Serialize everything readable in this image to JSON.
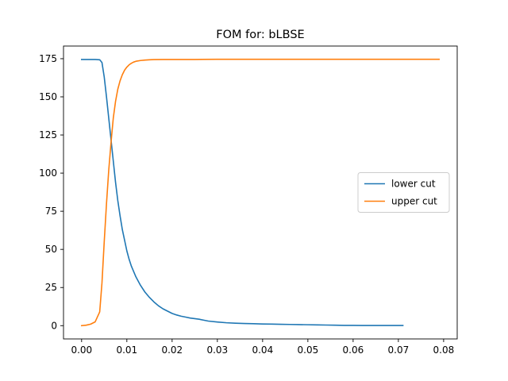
{
  "chart_data": {
    "type": "line",
    "title": "FOM for: bLBSE",
    "xlabel": "",
    "ylabel": "",
    "xlim": [
      -0.004,
      0.083
    ],
    "ylim": [
      -8.7,
      183.3
    ],
    "xticks": [
      0.0,
      0.01,
      0.02,
      0.03,
      0.04,
      0.05,
      0.06,
      0.07,
      0.08
    ],
    "xtick_labels": [
      "0.00",
      "0.01",
      "0.02",
      "0.03",
      "0.04",
      "0.05",
      "0.06",
      "0.07",
      "0.08"
    ],
    "yticks": [
      0,
      25,
      50,
      75,
      100,
      125,
      150,
      175
    ],
    "ytick_labels": [
      "0",
      "25",
      "50",
      "75",
      "100",
      "125",
      "150",
      "175"
    ],
    "grid": false,
    "legend_position": "center-right",
    "series": [
      {
        "name": "lower cut",
        "color": "#1f77b4",
        "x": [
          0.0,
          0.001,
          0.002,
          0.003,
          0.004,
          0.0045,
          0.005,
          0.0055,
          0.006,
          0.0065,
          0.007,
          0.0075,
          0.008,
          0.0085,
          0.009,
          0.0095,
          0.01,
          0.0105,
          0.011,
          0.012,
          0.013,
          0.014,
          0.015,
          0.016,
          0.017,
          0.018,
          0.019,
          0.02,
          0.021,
          0.022,
          0.023,
          0.024,
          0.025,
          0.026,
          0.027,
          0.028,
          0.03,
          0.032,
          0.034,
          0.036,
          0.038,
          0.04,
          0.042,
          0.044,
          0.046,
          0.048,
          0.05,
          0.052,
          0.054,
          0.056,
          0.058,
          0.06,
          0.062,
          0.065,
          0.068,
          0.071
        ],
        "y": [
          174.5,
          174.5,
          174.5,
          174.5,
          174.3,
          172.5,
          163,
          150,
          136,
          122,
          108,
          94,
          82,
          72,
          63,
          56,
          49,
          43.5,
          39,
          32,
          26.5,
          22,
          18.5,
          15.5,
          13,
          11,
          9.5,
          8,
          7,
          6.2,
          5.6,
          5,
          4.6,
          4.2,
          3.6,
          3,
          2.4,
          1.9,
          1.6,
          1.4,
          1.3,
          1.1,
          1.0,
          0.9,
          0.8,
          0.7,
          0.6,
          0.5,
          0.4,
          0.3,
          0.2,
          0.2,
          0.1,
          0.1,
          0.1,
          0.1
        ]
      },
      {
        "name": "upper cut",
        "color": "#ff7f0e",
        "x": [
          0.0,
          0.001,
          0.002,
          0.003,
          0.004,
          0.0045,
          0.005,
          0.0055,
          0.006,
          0.0065,
          0.007,
          0.0075,
          0.008,
          0.0085,
          0.009,
          0.0095,
          0.01,
          0.0105,
          0.011,
          0.0115,
          0.012,
          0.013,
          0.014,
          0.015,
          0.016,
          0.018,
          0.02,
          0.025,
          0.03,
          0.04,
          0.05,
          0.06,
          0.07,
          0.079
        ],
        "y": [
          0,
          0.3,
          1,
          2.5,
          9,
          28,
          55,
          80,
          102,
          120,
          136,
          147,
          155,
          160.5,
          164.5,
          167.5,
          169.5,
          171,
          172,
          172.8,
          173.3,
          173.8,
          174.1,
          174.3,
          174.4,
          174.5,
          174.5,
          174.5,
          174.6,
          174.6,
          174.6,
          174.6,
          174.6,
          174.6
        ]
      }
    ]
  }
}
